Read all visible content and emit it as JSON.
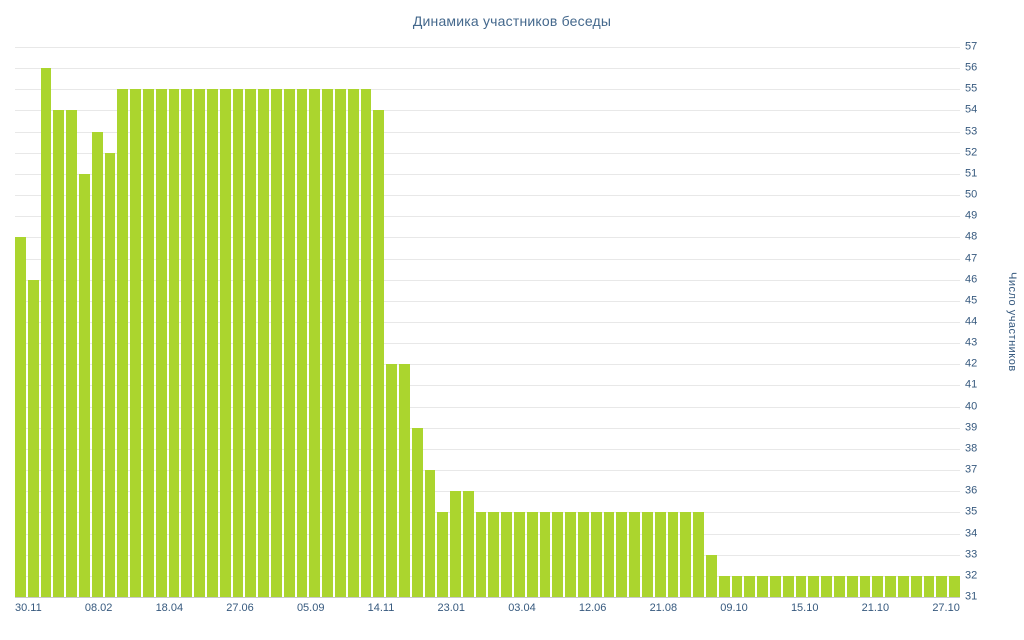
{
  "chart_data": {
    "type": "bar",
    "title": "Динамика участников беседы",
    "xlabel": "",
    "ylabel": "Число участников",
    "ylim": [
      31,
      57
    ],
    "y_tick_step": 1,
    "grid": "on",
    "legend": "off",
    "bar_color": "#abd52e",
    "grid_color": "#e8e8e8",
    "label_color": "#36597e",
    "title_color": "#44688c",
    "x_tick_labels": [
      "30.11",
      "08.02",
      "18.04",
      "27.06",
      "05.09",
      "14.11",
      "23.01",
      "03.04",
      "12.06",
      "21.08",
      "09.10",
      "15.10",
      "21.10",
      "27.10"
    ],
    "values": [
      48,
      46,
      56,
      54,
      54,
      51,
      53,
      52,
      55,
      55,
      55,
      55,
      55,
      55,
      55,
      55,
      55,
      55,
      55,
      55,
      55,
      55,
      55,
      55,
      55,
      55,
      55,
      55,
      54,
      42,
      42,
      39,
      37,
      35,
      36,
      36,
      35,
      35,
      35,
      35,
      35,
      35,
      35,
      35,
      35,
      35,
      35,
      35,
      35,
      35,
      35,
      35,
      35,
      35,
      33,
      32,
      32,
      32,
      32,
      32,
      32,
      32,
      32,
      32,
      32,
      32,
      32,
      32,
      32,
      32,
      32,
      32,
      32,
      32
    ]
  }
}
